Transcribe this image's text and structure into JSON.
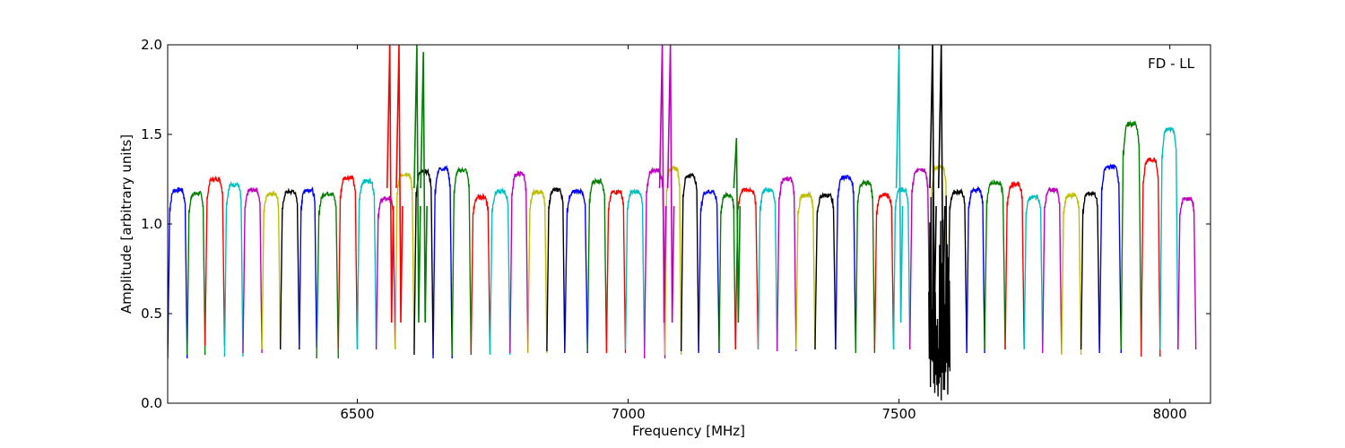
{
  "chart_data": {
    "type": "line",
    "title": "",
    "annotation": "FD - LL",
    "xlabel": "Frequency [MHz]",
    "ylabel": "Amplitude [arbitrary units]",
    "xlim": [
      6150,
      8075
    ],
    "ylim": [
      0.0,
      2.0
    ],
    "xticks": [
      6500,
      7000,
      7500,
      8000
    ],
    "xtick_labels": [
      "6500",
      "7000",
      "7500",
      "8000"
    ],
    "yticks": [
      0.0,
      0.5,
      1.0,
      1.5,
      2.0
    ],
    "ytick_labels": [
      "0.0",
      "0.5",
      "1.0",
      "1.5",
      "2.0"
    ],
    "grid": false,
    "legend": "none",
    "color_cycle": [
      "#0000ff",
      "#008000",
      "#ff0000",
      "#00bfbf",
      "#bf00bf",
      "#bfbf00",
      "#000000"
    ],
    "channel_edges_mhz": [
      6150,
      6186,
      6219,
      6255,
      6289,
      6324,
      6358,
      6393,
      6425,
      6465,
      6500,
      6535,
      6570,
      6605,
      6640,
      6675,
      6710,
      6745,
      6782,
      6815,
      6850,
      6883,
      6925,
      6960,
      6995,
      7030,
      7068,
      7098,
      7130,
      7168,
      7198,
      7240,
      7275,
      7310,
      7345,
      7383,
      7420,
      7455,
      7490,
      7520,
      7557,
      7590,
      7625,
      7658,
      7696,
      7731,
      7765,
      7800,
      7836,
      7870,
      7910,
      7947,
      7982,
      8015,
      8048,
      8075
    ],
    "peaks": [
      1.25,
      1.23,
      1.31,
      1.28,
      1.25,
      1.23,
      1.24,
      1.25,
      1.23,
      1.32,
      1.3,
      1.2,
      1.34,
      1.35,
      1.37,
      1.36,
      1.21,
      1.24,
      1.34,
      1.24,
      1.25,
      1.24,
      1.3,
      1.24,
      1.24,
      1.36,
      1.37,
      1.33,
      1.24,
      1.22,
      1.25,
      1.25,
      1.31,
      1.22,
      1.22,
      1.32,
      1.29,
      1.22,
      1.25,
      1.36,
      1.38,
      1.24,
      1.25,
      1.29,
      1.28,
      1.21,
      1.25,
      1.22,
      1.23,
      1.38,
      1.62,
      1.42,
      1.59,
      1.2
    ],
    "dips": [
      0.25,
      0.27,
      0.32,
      0.26,
      0.28,
      0.3,
      0.3,
      0.31,
      0.25,
      0.3,
      0.3,
      0.3,
      0.3,
      0.27,
      0.25,
      0.27,
      0.28,
      0.27,
      0.28,
      0.28,
      0.29,
      0.28,
      0.29,
      0.28,
      0.3,
      0.25,
      0.27,
      0.29,
      0.28,
      0.3,
      0.3,
      0.3,
      0.29,
      0.3,
      0.3,
      0.3,
      0.28,
      0.3,
      0.3,
      0.3,
      0.3,
      0.3,
      0.28,
      0.3,
      0.3,
      0.3,
      0.28,
      0.27,
      0.3,
      0.28,
      0.3,
      0.26,
      0.3,
      0.3
    ],
    "spikes": [
      {
        "x": 6560,
        "y": 2.0,
        "color": "#ff0000"
      },
      {
        "x": 6577,
        "y": 2.0,
        "color": "#ff0000"
      },
      {
        "x": 6610,
        "y": 2.0,
        "color": "#008000"
      },
      {
        "x": 6622,
        "y": 1.96,
        "color": "#008000"
      },
      {
        "x": 7063,
        "y": 2.0,
        "color": "#bf00bf"
      },
      {
        "x": 7078,
        "y": 2.0,
        "color": "#bf00bf"
      },
      {
        "x": 7200,
        "y": 1.48,
        "color": "#008000"
      },
      {
        "x": 7500,
        "y": 2.0,
        "color": "#00bfbf"
      },
      {
        "x": 7562,
        "y": 2.0,
        "color": "#000000"
      },
      {
        "x": 7578,
        "y": 2.0,
        "color": "#000000"
      }
    ],
    "deep_dip": {
      "x": 7575,
      "y": 0.0,
      "color": "#000000"
    }
  }
}
